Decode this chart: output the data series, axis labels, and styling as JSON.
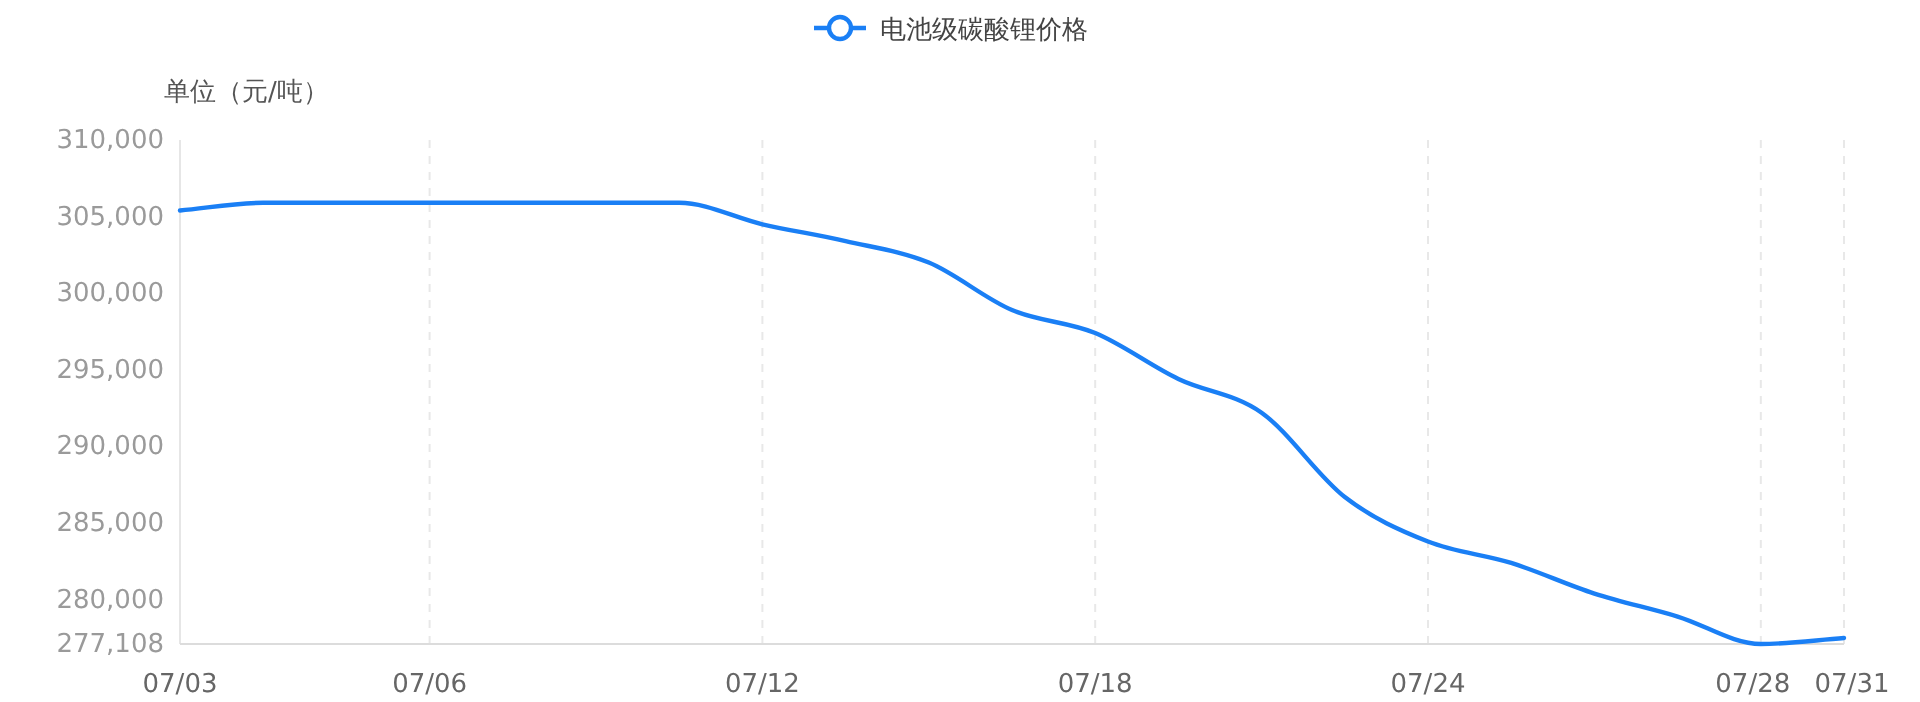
{
  "chart_data": {
    "type": "line",
    "ylabel": "单位（元/吨）",
    "categories": [
      "07/03",
      null,
      null,
      "07/06",
      null,
      null,
      null,
      "07/12",
      null,
      null,
      null,
      "07/18",
      null,
      null,
      null,
      "07/24",
      null,
      null,
      null,
      "07/28",
      "07/31"
    ],
    "series": [
      {
        "name": "电池级碳酸锂价格",
        "color": "#1a7ff5",
        "values": [
          305400,
          305900,
          305900,
          305900,
          305900,
          305900,
          305900,
          304500,
          303400,
          302000,
          298900,
          297400,
          294400,
          292200,
          286700,
          283800,
          282400,
          280400,
          278900,
          277108,
          277500
        ]
      }
    ],
    "ylim": [
      277108,
      310000
    ],
    "yticks": [
      {
        "value": 277108,
        "label": "277,108"
      },
      {
        "value": 280000,
        "label": "280,000"
      },
      {
        "value": 285000,
        "label": "285,000"
      },
      {
        "value": 290000,
        "label": "290,000"
      },
      {
        "value": 295000,
        "label": "295,000"
      },
      {
        "value": 300000,
        "label": "300,000"
      },
      {
        "value": 305000,
        "label": "305,000"
      },
      {
        "value": 310000,
        "label": "310,000"
      }
    ],
    "grid": "x",
    "legend": "top"
  }
}
